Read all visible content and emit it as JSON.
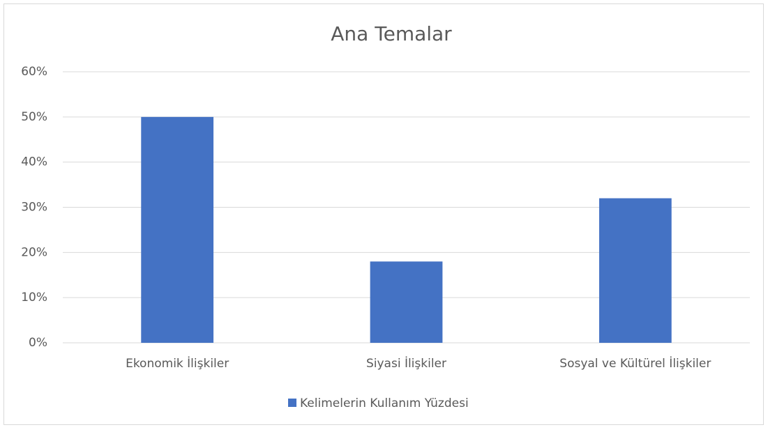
{
  "chart_data": {
    "type": "bar",
    "title": "Ana Temalar",
    "categories": [
      "Ekonomik İlişkiler",
      "Siyasi İlişkiler",
      "Sosyal ve Kültürel İlişkiler"
    ],
    "series": [
      {
        "name": "Kelimelerin Kullanım Yüzdesi",
        "color": "#4472c4",
        "values": [
          50,
          18,
          32
        ]
      }
    ],
    "ylim": [
      0,
      60
    ],
    "yticks": [
      {
        "value": 0,
        "label": "0%"
      },
      {
        "value": 10,
        "label": "10%"
      },
      {
        "value": 20,
        "label": "20%"
      },
      {
        "value": 30,
        "label": "30%"
      },
      {
        "value": 40,
        "label": "40%"
      },
      {
        "value": 50,
        "label": "50%"
      },
      {
        "value": 60,
        "label": "60%"
      }
    ],
    "grid": true,
    "legend": "bottom"
  }
}
